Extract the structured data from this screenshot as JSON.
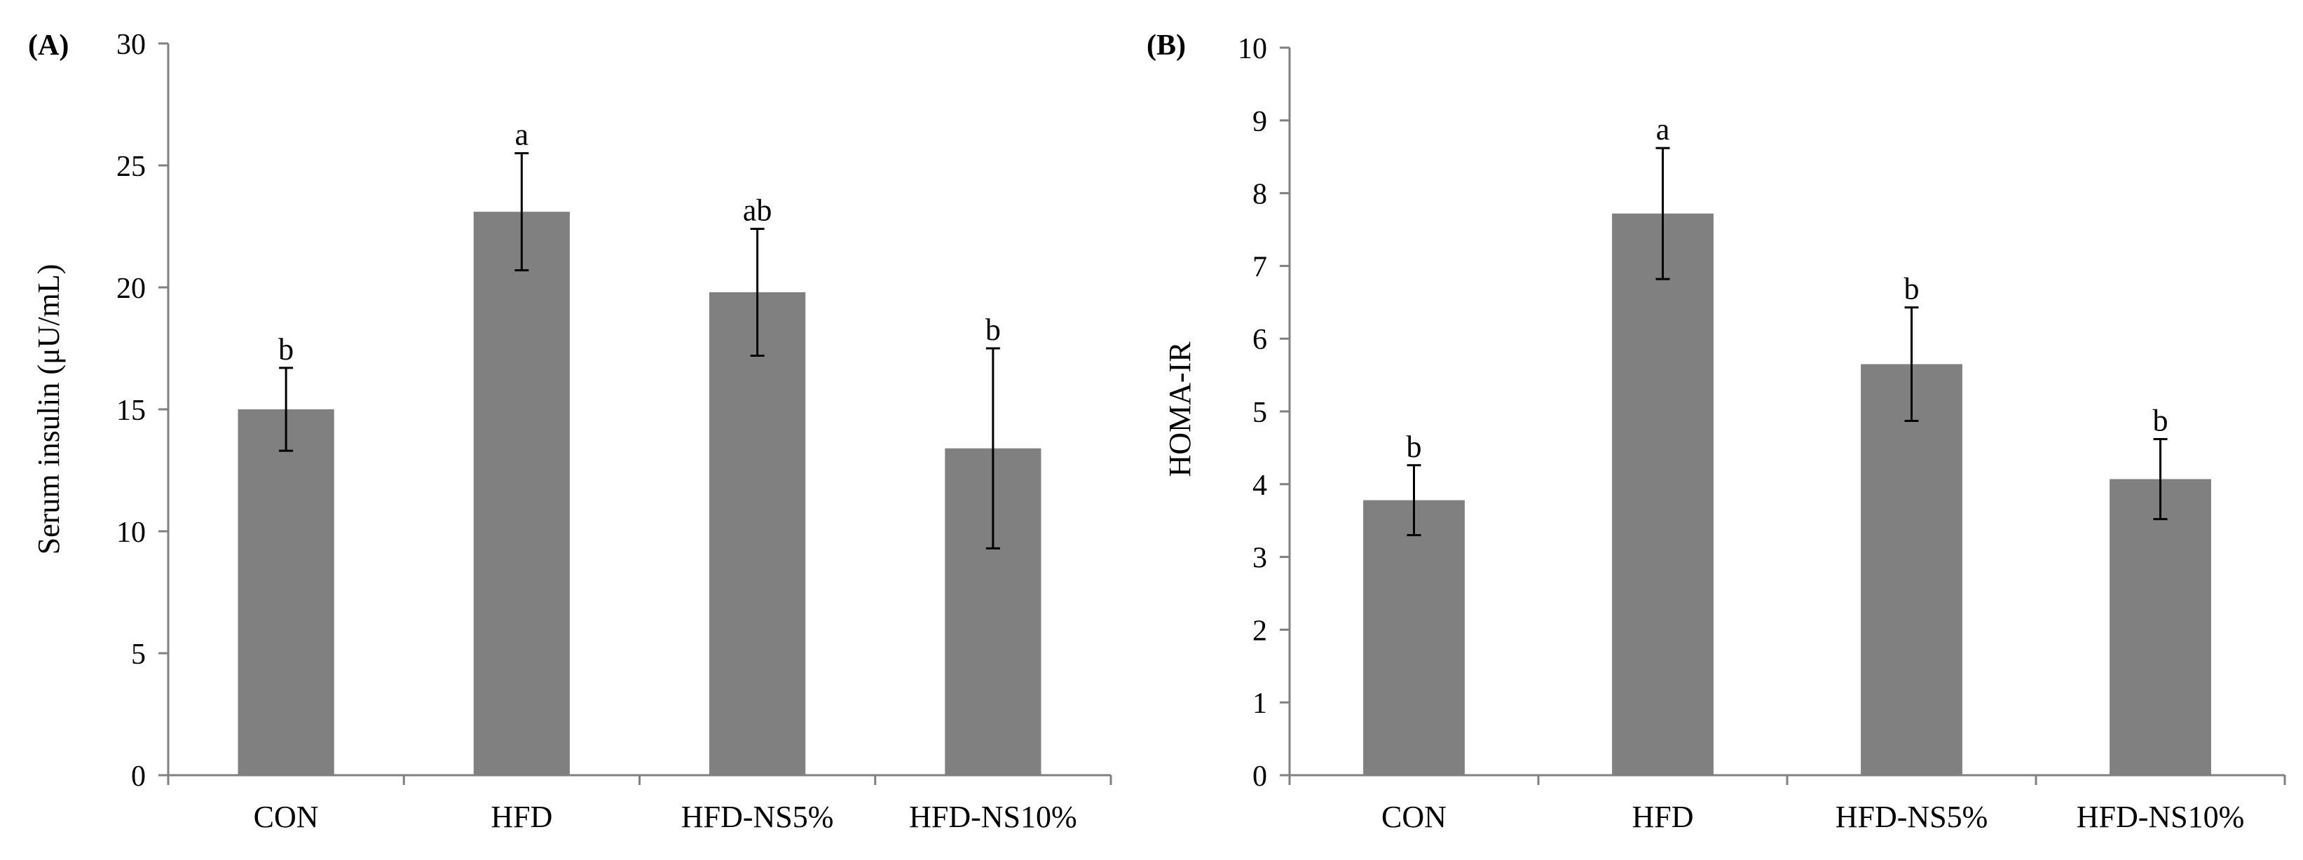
{
  "colors": {
    "bar": "#808080",
    "axis": "#808080",
    "error": "#000000",
    "text": "#000000"
  },
  "chart_data": [
    {
      "type": "bar",
      "panel": "(A)",
      "title": "",
      "xlabel": "",
      "ylabel": "Serum insulin (μU/mL)",
      "categories": [
        "CON",
        "HFD",
        "HFD-NS5%",
        "HFD-NS10%"
      ],
      "values": [
        15.0,
        23.1,
        19.8,
        13.4
      ],
      "errors": [
        1.7,
        2.4,
        2.6,
        4.1
      ],
      "letters": [
        "b",
        "a",
        "ab",
        "b"
      ],
      "ylim": [
        0,
        30
      ],
      "yticks": [
        0,
        5,
        10,
        15,
        20,
        25,
        30
      ],
      "grid": false
    },
    {
      "type": "bar",
      "panel": "(B)",
      "title": "",
      "xlabel": "",
      "ylabel": "HOMA-IR",
      "categories": [
        "CON",
        "HFD",
        "HFD-NS5%",
        "HFD-NS10%"
      ],
      "values": [
        3.78,
        7.72,
        5.65,
        4.07
      ],
      "errors": [
        0.48,
        0.9,
        0.78,
        0.55
      ],
      "letters": [
        "b",
        "a",
        "b",
        "b"
      ],
      "ylim": [
        0,
        10
      ],
      "yticks": [
        0,
        1,
        2,
        3,
        4,
        5,
        6,
        7,
        8,
        9,
        10
      ],
      "grid": false
    }
  ]
}
